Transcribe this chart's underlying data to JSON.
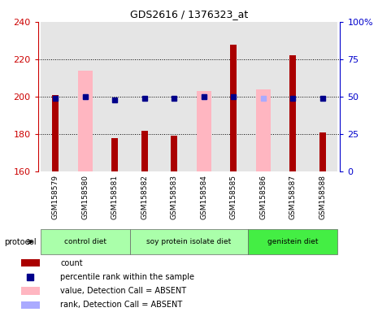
{
  "title": "GDS2616 / 1376323_at",
  "samples": [
    "GSM158579",
    "GSM158580",
    "GSM158581",
    "GSM158582",
    "GSM158583",
    "GSM158584",
    "GSM158585",
    "GSM158586",
    "GSM158587",
    "GSM158588"
  ],
  "red_bar_values": [
    201,
    null,
    178,
    182,
    179,
    null,
    228,
    null,
    222,
    181
  ],
  "pink_bar_values": [
    null,
    214,
    null,
    null,
    null,
    203,
    null,
    204,
    null,
    null
  ],
  "blue_square_values": [
    49,
    50,
    48,
    49,
    49,
    50,
    50,
    null,
    49,
    49
  ],
  "light_blue_square_values": [
    null,
    50,
    null,
    null,
    null,
    50,
    null,
    49,
    null,
    null
  ],
  "ylim_left": [
    160,
    240
  ],
  "ylim_right": [
    0,
    100
  ],
  "yticks_left": [
    160,
    180,
    200,
    220,
    240
  ],
  "yticks_right": [
    0,
    25,
    50,
    75,
    100
  ],
  "ytick_right_labels": [
    "0",
    "25",
    "50",
    "75",
    "100%"
  ],
  "left_tick_color": "#cc0000",
  "right_tick_color": "#0000cc",
  "bar_color_dark_red": "#aa0000",
  "bar_color_pink": "#ffb6c1",
  "square_color_blue": "#00008b",
  "square_color_light_blue": "#aaaaff",
  "bg_color": "#ffffff",
  "col_bg_color": "#cccccc",
  "col_bg_alpha": 0.5,
  "groups": [
    {
      "name": "control diet",
      "start": 0,
      "end": 2,
      "color": "#aaffaa"
    },
    {
      "name": "soy protein isolate diet",
      "start": 3,
      "end": 6,
      "color": "#aaffaa"
    },
    {
      "name": "genistein diet",
      "start": 7,
      "end": 9,
      "color": "#44ee44"
    }
  ],
  "legend": [
    {
      "color": "#aa0000",
      "shape": "rect",
      "label": "count"
    },
    {
      "color": "#00008b",
      "shape": "square",
      "label": "percentile rank within the sample"
    },
    {
      "color": "#ffb6c1",
      "shape": "rect",
      "label": "value, Detection Call = ABSENT"
    },
    {
      "color": "#aaaaff",
      "shape": "rect",
      "label": "rank, Detection Call = ABSENT"
    }
  ],
  "pink_bar_width": 0.5,
  "red_bar_width": 0.22
}
